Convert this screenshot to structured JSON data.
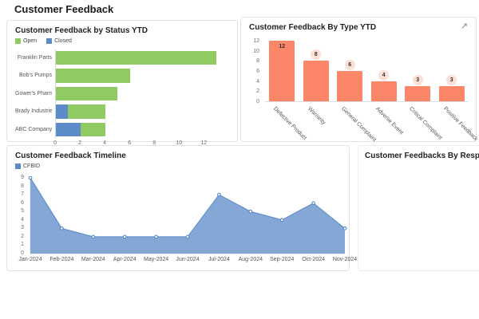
{
  "page": {
    "title": "Customer Feedback"
  },
  "colors": {
    "open": "#8FCB62",
    "closed": "#5B8BC9",
    "type_bar": "#FB8768",
    "type_badge_bg": "#FCDFD5",
    "timeline_line": "#5588C7",
    "timeline_fill": "#7DA2D4",
    "axis_line": "#d9d9d9"
  },
  "panels": {
    "status": {
      "title": "Customer Feedback by Status YTD",
      "legend": [
        {
          "label": "Open",
          "color": "#8FCB62"
        },
        {
          "label": "Closed",
          "color": "#5B8BC9"
        }
      ]
    },
    "type": {
      "title": "Customer Feedback By Type YTD",
      "expand_icon": "↗"
    },
    "timeline": {
      "title": "Customer Feedback Timeline",
      "legend": [
        {
          "label": "CFBID",
          "color": "#5B8BC9"
        }
      ]
    },
    "resp_party": {
      "title": "Customer Feedbacks By Resp Party"
    }
  },
  "chart_data": [
    {
      "id": "status_ytd",
      "type": "bar",
      "orientation": "horizontal",
      "stacked": true,
      "title": "Customer Feedback by Status YTD",
      "categories": [
        "Franklin Parts",
        "Bob's Pumps",
        "Gower's Pharmacy",
        "Brady Industries",
        "ABC Company"
      ],
      "series": [
        {
          "name": "Closed",
          "color": "#5B8BC9",
          "values": [
            0,
            0,
            0,
            1,
            2
          ]
        },
        {
          "name": "Open",
          "color": "#8FCB62",
          "values": [
            13,
            6,
            5,
            3,
            2
          ]
        }
      ],
      "xlabel": "",
      "ylabel": "",
      "xlim": [
        0,
        13
      ],
      "xticks": [
        0,
        2,
        4,
        6,
        8,
        10,
        12
      ],
      "grid": false,
      "legend_position": "top"
    },
    {
      "id": "type_ytd",
      "type": "bar",
      "orientation": "vertical",
      "title": "Customer Feedback By Type YTD",
      "categories": [
        "Defective Product",
        "Warranty",
        "General Complaint",
        "Adverse Event",
        "Critical Complaint",
        "Positive Feedback"
      ],
      "values": [
        12,
        8,
        6,
        4,
        3,
        3
      ],
      "bar_color": "#FB8768",
      "data_labels": true,
      "ylim": [
        0,
        12
      ],
      "yticks": [
        0,
        2,
        4,
        6,
        8,
        10,
        12
      ],
      "grid": false,
      "xlabel": "",
      "ylabel": ""
    },
    {
      "id": "timeline",
      "type": "area",
      "title": "Customer Feedback Timeline",
      "series_name": "CFBID",
      "x": [
        "Jan-2024",
        "Feb-2024",
        "Mar-2024",
        "Apr-2024",
        "May-2024",
        "Jun-2024",
        "Jul-2024",
        "Aug-2024",
        "Sep-2024",
        "Oct-2024",
        "Nov-2024"
      ],
      "values": [
        9,
        3,
        2,
        2,
        2,
        2,
        7,
        5,
        4,
        6,
        3
      ],
      "line_color": "#5588C7",
      "fill_color": "#7DA2D4",
      "ylim": [
        0,
        9
      ],
      "yticks": [
        0,
        1,
        2,
        3,
        4,
        5,
        6,
        7,
        8,
        9
      ],
      "grid": false,
      "legend_position": "top"
    }
  ]
}
